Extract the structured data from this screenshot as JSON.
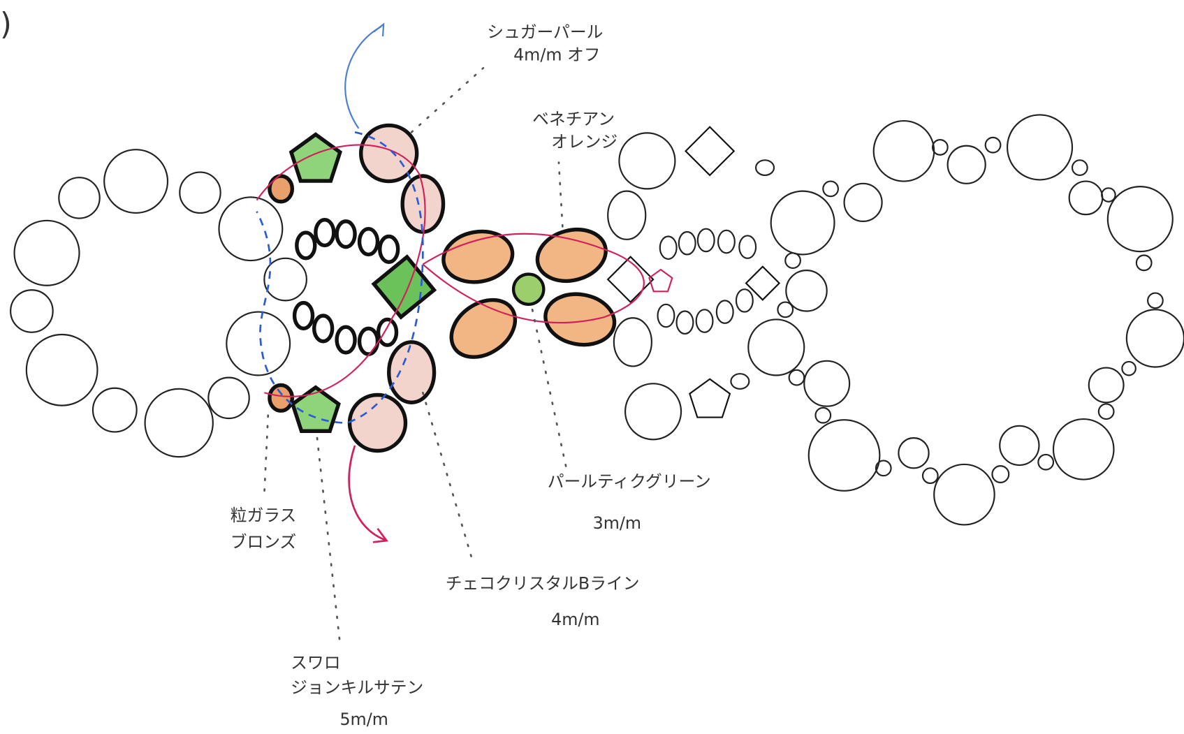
{
  "figure_mark": ")",
  "labels": [
    {
      "lines": [
        "シュガーパール",
        "4m/m オフ"
      ]
    },
    {
      "lines": [
        "ベネチアン",
        "オレンジ"
      ]
    },
    {
      "lines": [
        "パールティクグリーン",
        "3m/m"
      ]
    },
    {
      "lines": [
        "チェコクリスタルBライン",
        "4m/m"
      ]
    },
    {
      "lines": [
        "粒ガラス",
        "ブロンズ"
      ]
    },
    {
      "lines": [
        "スワロ",
        "ジョンキルサテン",
        "5m/m"
      ]
    }
  ]
}
